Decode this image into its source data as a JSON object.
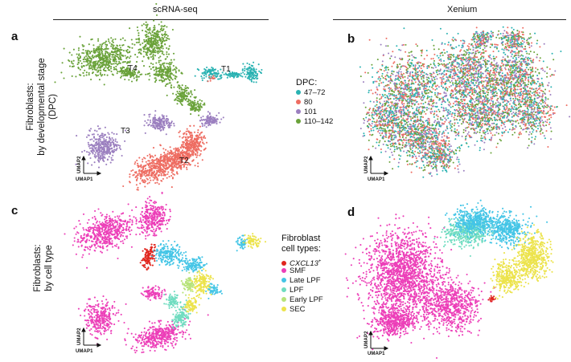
{
  "columns": {
    "left_title": "scRNA-seq",
    "right_title": "Xenium"
  },
  "rows": {
    "top": {
      "line1": "Fibroblasts:",
      "line2": "by developmental stage",
      "line3": "(DPC)"
    },
    "bottom": {
      "line1": "Fibroblasts:",
      "line2": "by cell type"
    }
  },
  "panel_letters": {
    "a": "a",
    "b": "b",
    "c": "c",
    "d": "d"
  },
  "axes": {
    "x_label": "UMAP1",
    "y_label": "UMAP2"
  },
  "chart_data": [
    {
      "panel": "a",
      "type": "scatter",
      "title": "",
      "xlabel": "UMAP1",
      "ylabel": "UMAP2",
      "legend": {
        "title": "DPC:",
        "placement": "right",
        "entries": [
          {
            "label": "47–72",
            "color": "#2ab2b2"
          },
          {
            "label": "80",
            "color": "#ee6d62"
          },
          {
            "label": "101",
            "color": "#9b7fbf"
          },
          {
            "label": "110–142",
            "color": "#6aa23a"
          }
        ]
      },
      "cluster_labels": [
        "T1",
        "T2",
        "T3",
        "T4"
      ]
    },
    {
      "panel": "b",
      "type": "scatter",
      "title": "",
      "xlabel": "UMAP1",
      "ylabel": "UMAP2",
      "colors": [
        "#2ab2b2",
        "#ee6d62",
        "#9b7fbf",
        "#6aa23a"
      ]
    },
    {
      "panel": "c",
      "type": "scatter",
      "title": "",
      "xlabel": "UMAP1",
      "ylabel": "UMAP2",
      "legend": {
        "title_line1": "Fibroblast",
        "title_line2": "cell types:",
        "placement": "right",
        "entries": [
          {
            "label": "CXCL13",
            "suffix": "+",
            "italic": true,
            "color": "#e0261e"
          },
          {
            "label": "SMF",
            "color": "#ec3fb8"
          },
          {
            "label": "Late LPF",
            "color": "#44c5e6"
          },
          {
            "label": "LPF",
            "color": "#6fdcc0"
          },
          {
            "label": "Early LPF",
            "color": "#b7e37a"
          },
          {
            "label": "SEC",
            "color": "#ece34c"
          }
        ]
      }
    },
    {
      "panel": "d",
      "type": "scatter",
      "title": "",
      "xlabel": "UMAP1",
      "ylabel": "UMAP2",
      "colors": [
        "#ec3fb8",
        "#44c5e6",
        "#6fdcc0",
        "#ece34c",
        "#e0261e"
      ]
    }
  ]
}
